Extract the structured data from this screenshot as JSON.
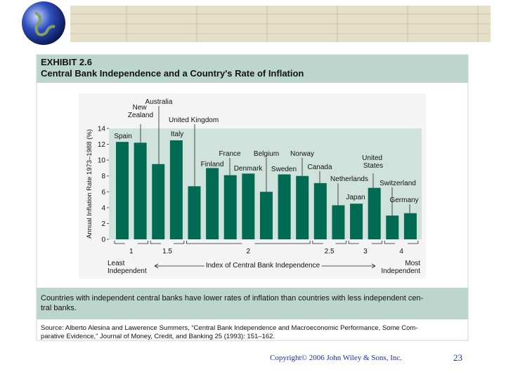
{
  "header": {
    "exhibit": "EXHIBIT 2.6",
    "title": "Central Bank Independence and a Country's Rate of Inflation"
  },
  "chart_data": {
    "type": "bar",
    "y_label": "Annual Inflation Rate 1973–1988 (%)",
    "x_label": "Index of Central Bank Independence",
    "x_left_label": [
      "Least",
      "Independent"
    ],
    "x_right_label": [
      "Most",
      "Independent"
    ],
    "ylim": [
      0,
      14
    ],
    "yticks": [
      0,
      2,
      4,
      6,
      8,
      10,
      12,
      14
    ],
    "color": "#006b52",
    "groups": [
      {
        "label": "1",
        "categories": [
          "Spain",
          "New Zealand"
        ],
        "values": [
          12.3,
          12.2
        ]
      },
      {
        "label": "1.5",
        "categories": [
          "Australia",
          "Italy"
        ],
        "values": [
          9.5,
          12.5
        ]
      },
      {
        "label": "2",
        "categories": [
          "United Kingdom",
          "Finland",
          "France",
          "Denmark",
          "Belgium",
          "Sweden",
          "Norway"
        ],
        "values": [
          6.7,
          9.0,
          8.1,
          8.3,
          6.0,
          8.2,
          8.0
        ]
      },
      {
        "label": "2.5",
        "categories": [
          "Canada",
          "Netherlands"
        ],
        "values": [
          7.1,
          4.3
        ]
      },
      {
        "label": "3",
        "categories": [
          "Japan",
          "United States"
        ],
        "values": [
          4.5,
          6.5
        ]
      },
      {
        "label": "4",
        "categories": [
          "Switzerland",
          "Germany"
        ],
        "values": [
          3.0,
          3.3
        ]
      }
    ]
  },
  "caption": [
    "Countries with independent central banks have lower rates of inflation than countries with less independent cen-",
    "tral banks."
  ],
  "source": [
    "Source: Alberto Alesina and Lawerence Summers, “Central Bank Independence and Macroeconomic Performance, Some Com-",
    "parative Evidence,” Journal of Money, Credit, and Banking 25 (1993): 151–162."
  ],
  "footer": {
    "copyright": "Copyright© 2006 John Wiley & Sons, Inc.",
    "page": "23"
  }
}
